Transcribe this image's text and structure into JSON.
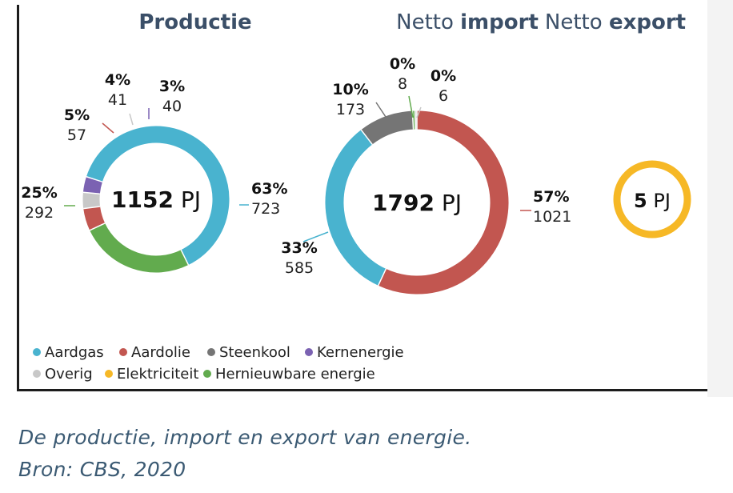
{
  "chart_data": {
    "type": "pie",
    "series": [
      {
        "name": "Aardgas",
        "color": "#49b3cf"
      },
      {
        "name": "Aardolie",
        "color": "#c25650"
      },
      {
        "name": "Steenkool",
        "color": "#757575"
      },
      {
        "name": "Kernenergie",
        "color": "#7b62b2"
      },
      {
        "name": "Overig",
        "color": "#c8c8c8"
      },
      {
        "name": "Elektriciteit",
        "color": "#f6b826"
      },
      {
        "name": "Hernieuwbare energie",
        "color": "#62ab4e"
      }
    ],
    "charts": [
      {
        "title_pre": "",
        "title_bold": "Productie",
        "total_value": "1152",
        "total_unit": "PJ",
        "slices": [
          {
            "series": "Aardgas",
            "value": 723,
            "percent": "63%"
          },
          {
            "series": "Hernieuwbare energie",
            "value": 292,
            "percent": "25%"
          },
          {
            "series": "Aardolie",
            "value": 57,
            "percent": "5%"
          },
          {
            "series": "Overig",
            "value": 41,
            "percent": "4%"
          },
          {
            "series": "Kernenergie",
            "value": 40,
            "percent": "3%"
          }
        ]
      },
      {
        "title_pre": "Netto",
        "title_bold": "import",
        "total_value": "1792",
        "total_unit": "PJ",
        "slices": [
          {
            "series": "Aardolie",
            "value": 1021,
            "percent": "57%"
          },
          {
            "series": "Aardgas",
            "value": 585,
            "percent": "33%"
          },
          {
            "series": "Steenkool",
            "value": 173,
            "percent": "10%"
          },
          {
            "series": "Hernieuwbare energie",
            "value": 8,
            "percent": "0%"
          },
          {
            "series": "Overig",
            "value": 6,
            "percent": "0%"
          }
        ]
      },
      {
        "title_pre": "Netto",
        "title_bold": "export",
        "total_value": "5",
        "total_unit": "PJ",
        "slices": [
          {
            "series": "Elektriciteit",
            "value": 5,
            "percent": ""
          }
        ]
      }
    ]
  },
  "caption": {
    "line1": "De productie, import en export van energie.",
    "line2": "Bron: CBS, 2020"
  }
}
